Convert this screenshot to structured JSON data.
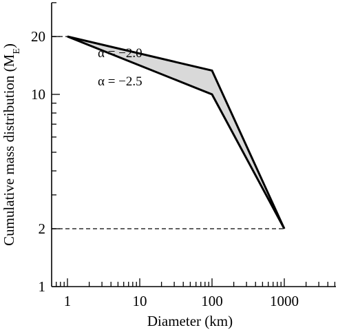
{
  "chart_data": {
    "type": "line",
    "xscale": "log",
    "yscale": "log",
    "xlim": [
      0.5,
      5000
    ],
    "ylim": [
      1,
      30
    ],
    "xlabel": "Diameter (km)",
    "ylabel_main": "Cumulative mass distribution (M",
    "ylabel_sub": "E",
    "ylabel_close": ")",
    "x_ticks": [
      {
        "value": 1,
        "label": "1"
      },
      {
        "value": 10,
        "label": "10"
      },
      {
        "value": 100,
        "label": "100"
      },
      {
        "value": 1000,
        "label": "1000"
      }
    ],
    "y_ticks": [
      {
        "value": 1,
        "label": "1"
      },
      {
        "value": 2,
        "label": "2"
      },
      {
        "value": 10,
        "label": "10"
      },
      {
        "value": 20,
        "label": "20"
      }
    ],
    "series": [
      {
        "name": "α = −2.0",
        "x": [
          1,
          100,
          1000
        ],
        "y": [
          20,
          13.3,
          2
        ]
      },
      {
        "name": "α = −2.5",
        "x": [
          1,
          100,
          1000
        ],
        "y": [
          20,
          10,
          2
        ]
      }
    ],
    "reference_lines": [
      {
        "axis": "y",
        "value": 20,
        "from_x": 0.5,
        "to_x": 1,
        "style": "dashed"
      },
      {
        "axis": "y",
        "value": 2,
        "from_x": 0.5,
        "to_x": 1000,
        "style": "dashed"
      }
    ],
    "fill_between_series": true,
    "fill_color": "#d9d9d9",
    "line_color": "#000000",
    "grid": false
  }
}
